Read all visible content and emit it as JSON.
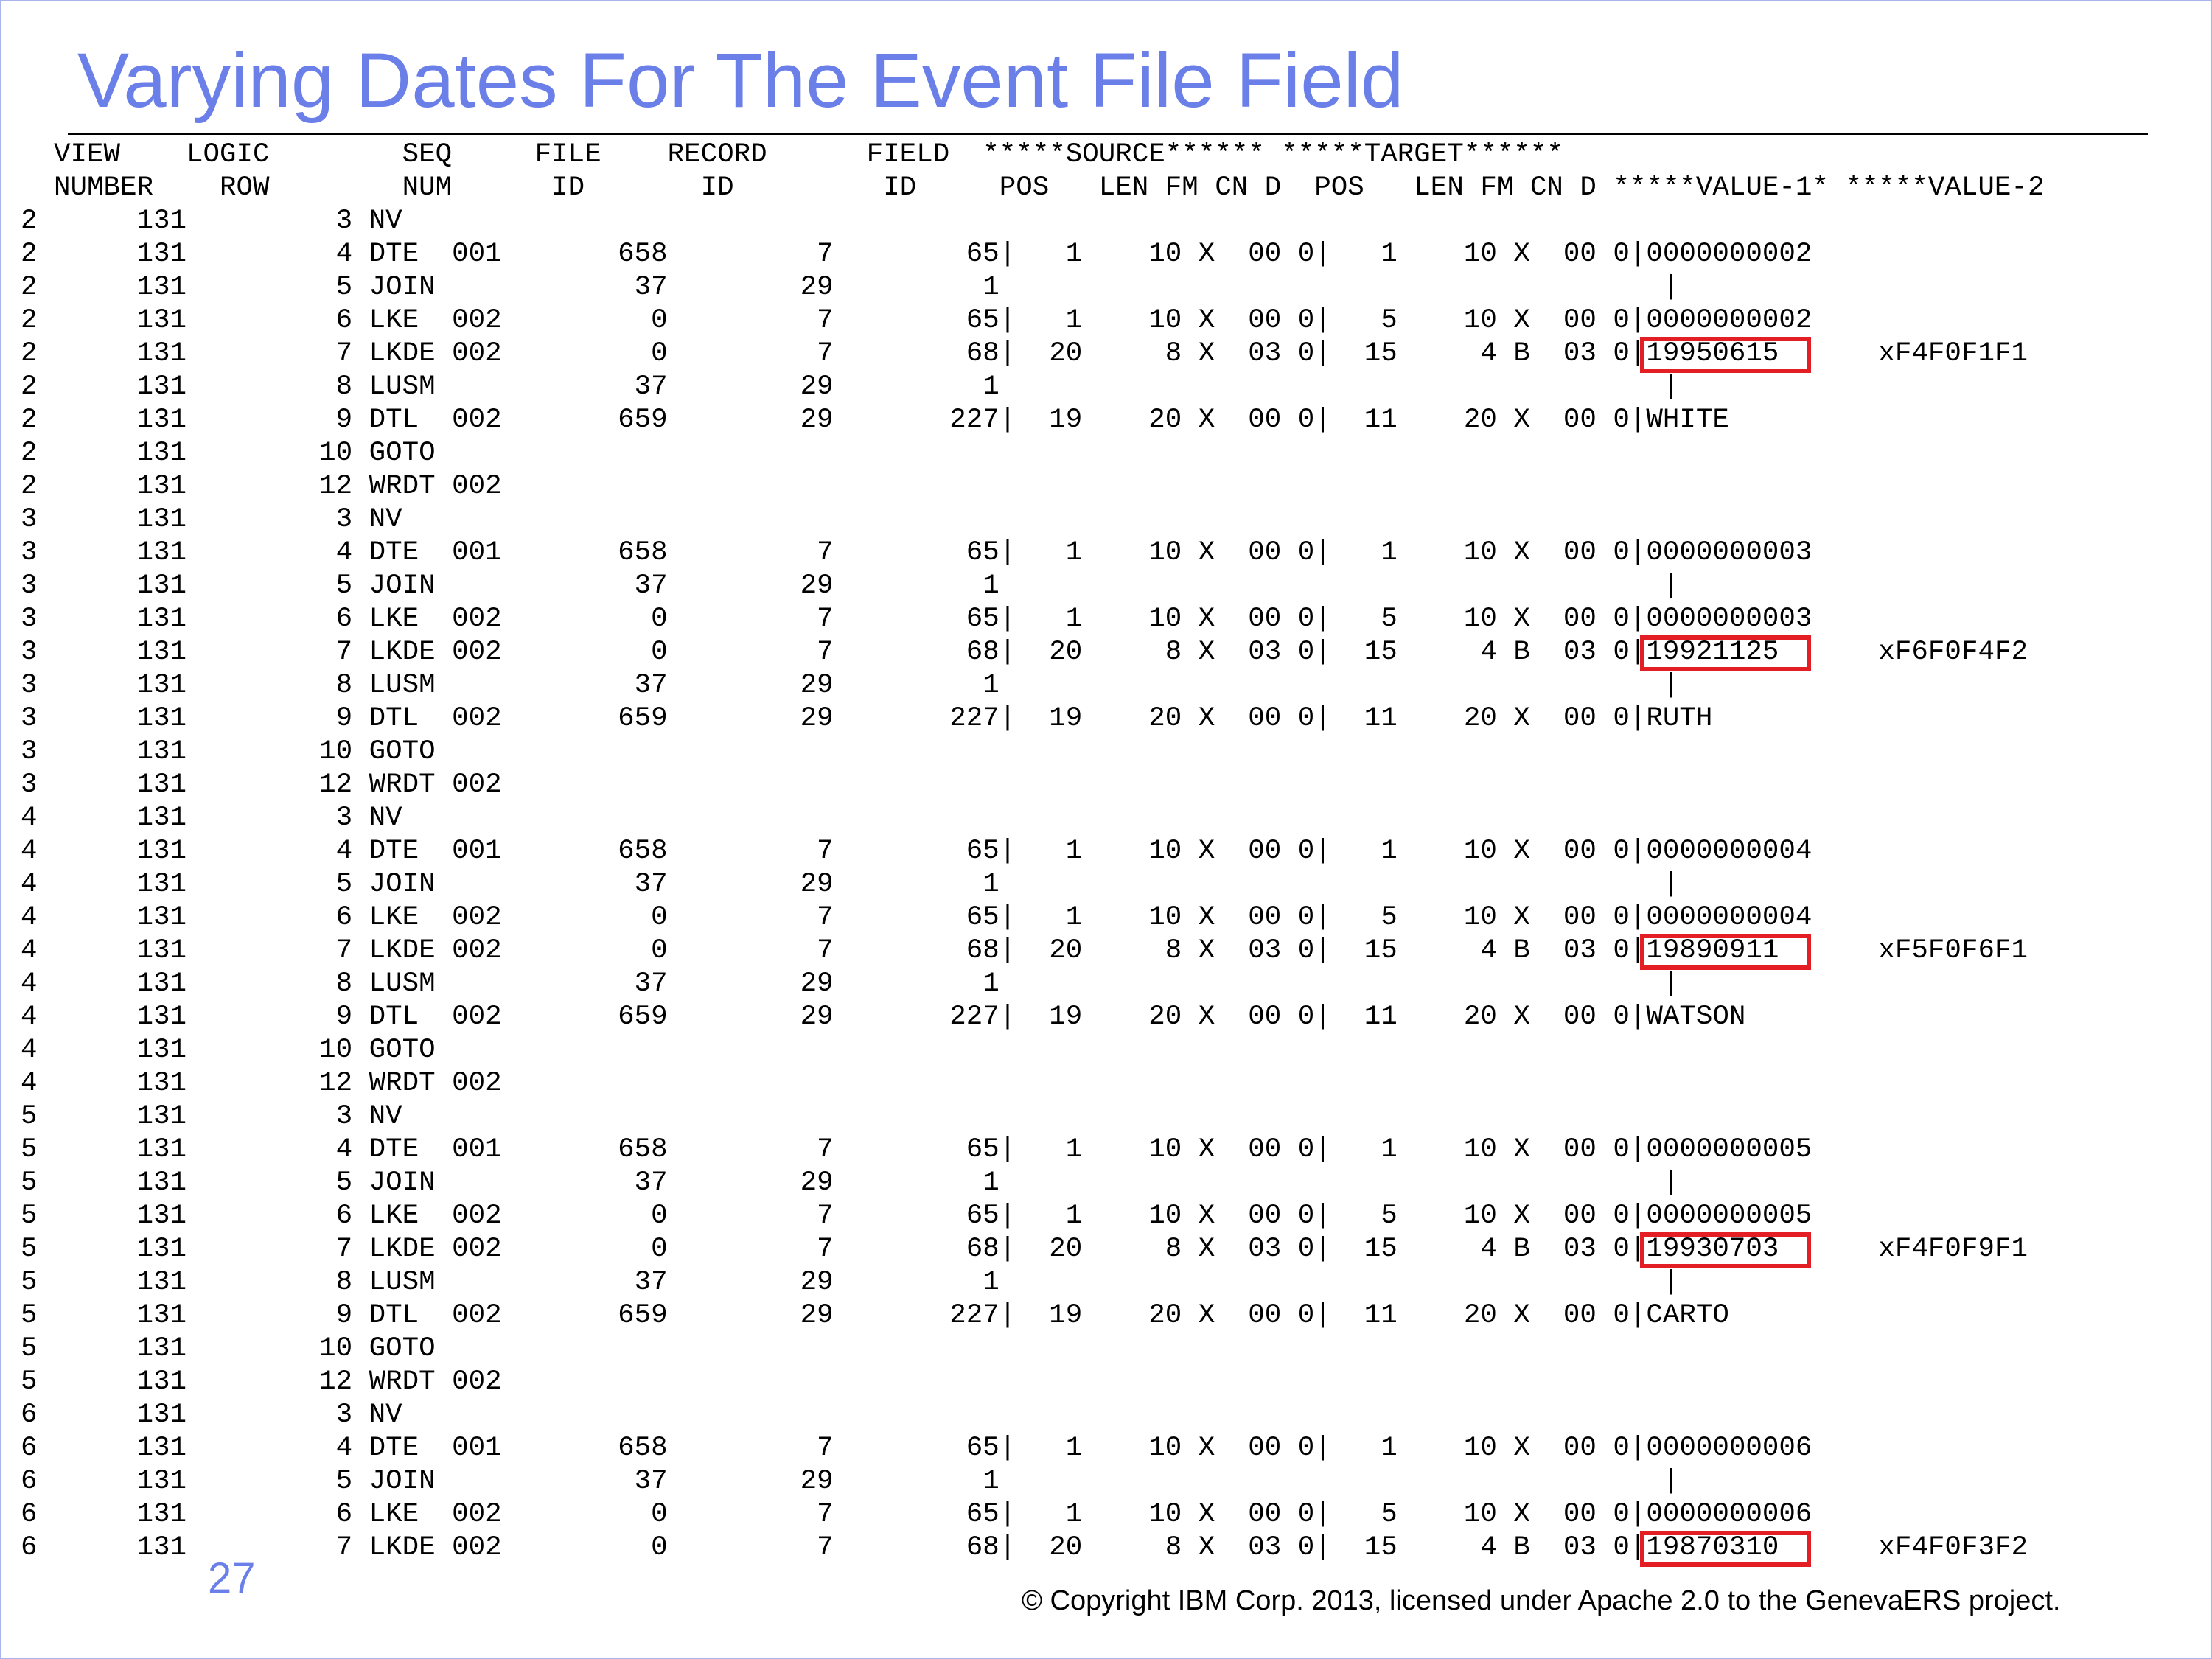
{
  "slide": {
    "title": "Varying Dates For The Event File Field",
    "accent_color": "#6b7fe8",
    "highlight_color": "#e31e24",
    "page_number": "27",
    "copyright": "© Copyright IBM Corp. 2013, licensed under Apache 2.0 to the GenevaERS project."
  },
  "listing": {
    "header_lines": [
      "  VIEW    LOGIC        SEQ     FILE    RECORD      FIELD  *****SOURCE****** *****TARGET******",
      "  NUMBER    ROW        NUM      ID       ID         ID     POS   LEN FM CN D  POS   LEN FM CN D *****VALUE-1* *****VALUE-2"
    ],
    "rows": [
      {
        "line": "2      131         3 NV"
      },
      {
        "line": "2      131         4 DTE  001       658         7        65|   1    10 X  00 0|   1    10 X  00 0|0000000002"
      },
      {
        "line": "2      131         5 JOIN            37        29         1                                        |"
      },
      {
        "line": "2      131         6 LKE  002         0         7        65|   1    10 X  00 0|   5    10 X  00 0|0000000002"
      },
      {
        "line": "2      131         7 LKDE 002         0         7        68|  20     8 X  03 0|  15     4 B  03 0|",
        "value1": "19950615",
        "gap": "      ",
        "value2": "xF4F0F1F1"
      },
      {
        "line": "2      131         8 LUSM            37        29         1                                        |"
      },
      {
        "line": "2      131         9 DTL  002       659        29       227|  19    20 X  00 0|  11    20 X  00 0|WHITE"
      },
      {
        "line": "2      131        10 GOTO"
      },
      {
        "line": "2      131        12 WRDT 002"
      },
      {
        "line": "3      131         3 NV"
      },
      {
        "line": "3      131         4 DTE  001       658         7        65|   1    10 X  00 0|   1    10 X  00 0|0000000003"
      },
      {
        "line": "3      131         5 JOIN            37        29         1                                        |"
      },
      {
        "line": "3      131         6 LKE  002         0         7        65|   1    10 X  00 0|   5    10 X  00 0|0000000003"
      },
      {
        "line": "3      131         7 LKDE 002         0         7        68|  20     8 X  03 0|  15     4 B  03 0|",
        "value1": "19921125",
        "gap": "      ",
        "value2": "xF6F0F4F2"
      },
      {
        "line": "3      131         8 LUSM            37        29         1                                        |"
      },
      {
        "line": "3      131         9 DTL  002       659        29       227|  19    20 X  00 0|  11    20 X  00 0|RUTH"
      },
      {
        "line": "3      131        10 GOTO"
      },
      {
        "line": "3      131        12 WRDT 002"
      },
      {
        "line": "4      131         3 NV"
      },
      {
        "line": "4      131         4 DTE  001       658         7        65|   1    10 X  00 0|   1    10 X  00 0|0000000004"
      },
      {
        "line": "4      131         5 JOIN            37        29         1                                        |"
      },
      {
        "line": "4      131         6 LKE  002         0         7        65|   1    10 X  00 0|   5    10 X  00 0|0000000004"
      },
      {
        "line": "4      131         7 LKDE 002         0         7        68|  20     8 X  03 0|  15     4 B  03 0|",
        "value1": "19890911",
        "gap": "      ",
        "value2": "xF5F0F6F1"
      },
      {
        "line": "4      131         8 LUSM            37        29         1                                        |"
      },
      {
        "line": "4      131         9 DTL  002       659        29       227|  19    20 X  00 0|  11    20 X  00 0|WATSON"
      },
      {
        "line": "4      131        10 GOTO"
      },
      {
        "line": "4      131        12 WRDT 002"
      },
      {
        "line": "5      131         3 NV"
      },
      {
        "line": "5      131         4 DTE  001       658         7        65|   1    10 X  00 0|   1    10 X  00 0|0000000005"
      },
      {
        "line": "5      131         5 JOIN            37        29         1                                        |"
      },
      {
        "line": "5      131         6 LKE  002         0         7        65|   1    10 X  00 0|   5    10 X  00 0|0000000005"
      },
      {
        "line": "5      131         7 LKDE 002         0         7        68|  20     8 X  03 0|  15     4 B  03 0|",
        "value1": "19930703",
        "gap": "      ",
        "value2": "xF4F0F9F1"
      },
      {
        "line": "5      131         8 LUSM            37        29         1                                        |"
      },
      {
        "line": "5      131         9 DTL  002       659        29       227|  19    20 X  00 0|  11    20 X  00 0|CARTO"
      },
      {
        "line": "5      131        10 GOTO"
      },
      {
        "line": "5      131        12 WRDT 002"
      },
      {
        "line": "6      131         3 NV"
      },
      {
        "line": "6      131         4 DTE  001       658         7        65|   1    10 X  00 0|   1    10 X  00 0|0000000006"
      },
      {
        "line": "6      131         5 JOIN            37        29         1                                        |"
      },
      {
        "line": "6      131         6 LKE  002         0         7        65|   1    10 X  00 0|   5    10 X  00 0|0000000006"
      },
      {
        "line": "6      131         7 LKDE 002         0         7        68|  20     8 X  03 0|  15     4 B  03 0|",
        "value1": "19870310",
        "gap": "      ",
        "value2": "xF4F0F3F2"
      }
    ]
  }
}
